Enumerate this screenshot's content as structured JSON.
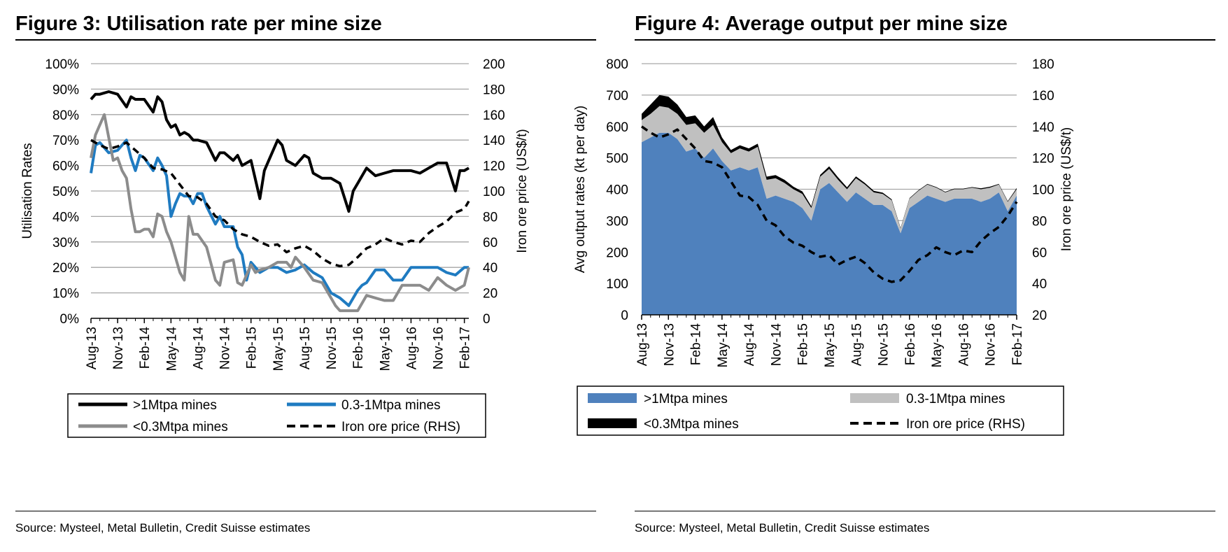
{
  "chart_data": [
    {
      "type": "line",
      "title": "Figure 3: Utilisation rate per mine size",
      "source": "Source: Mysteel, Metal Bulletin, Credit Suisse estimates",
      "ylabel": "Utilisation Rates",
      "y2label": "Iron ore price (US$/t)",
      "ylim": [
        0,
        100
      ],
      "y2lim": [
        0,
        200
      ],
      "yticks": [
        "0%",
        "10%",
        "20%",
        "30%",
        "40%",
        "50%",
        "60%",
        "70%",
        "80%",
        "90%",
        "100%"
      ],
      "y2ticks": [
        "0",
        "20",
        "40",
        "60",
        "80",
        "100",
        "120",
        "140",
        "160",
        "180",
        "200"
      ],
      "xticks": [
        "Aug-13",
        "Nov-13",
        "Feb-14",
        "May-14",
        "Aug-14",
        "Nov-14",
        "Feb-15",
        "May-15",
        "Aug-15",
        "Nov-15",
        "Feb-16",
        "May-16",
        "Aug-16",
        "Nov-16",
        "Feb-17"
      ],
      "x_months": [
        0,
        3,
        6,
        9,
        12,
        15,
        18,
        21,
        24,
        27,
        30,
        33,
        36,
        39,
        42
      ],
      "series": [
        {
          "name": ">1Mtpa mines",
          "axis": "left",
          "color": "#000000",
          "style": "solid",
          "x": [
            0,
            0.5,
            1,
            2,
            3,
            4,
            4.5,
            5,
            5.5,
            6,
            7,
            7.5,
            8,
            8.5,
            9,
            9.5,
            10,
            10.5,
            11,
            11.5,
            12,
            13,
            14,
            14.5,
            15,
            16,
            16.5,
            17,
            18,
            19,
            19.5,
            20,
            21,
            21.5,
            22,
            23,
            24,
            24.5,
            25,
            26,
            27,
            28,
            29,
            29.5,
            30,
            31,
            32,
            33,
            34,
            35,
            36,
            37,
            38,
            39,
            40,
            41,
            41.5,
            42,
            42.5
          ],
          "values": [
            86,
            88,
            88,
            89,
            88,
            83,
            87,
            86,
            86,
            86,
            81,
            87,
            85,
            78,
            75,
            76,
            72,
            73,
            72,
            70,
            70,
            69,
            62,
            65,
            65,
            62,
            64,
            60,
            62,
            47,
            58,
            62,
            70,
            68,
            62,
            60,
            64,
            63,
            57,
            55,
            55,
            53,
            42,
            50,
            53,
            59,
            56,
            57,
            58,
            58,
            58,
            57,
            59,
            61,
            61,
            50,
            58,
            58,
            59
          ]
        },
        {
          "name": "0.3-1Mtpa mines",
          "axis": "left",
          "color": "#1f7bc1",
          "style": "solid",
          "x": [
            0,
            0.5,
            1,
            2,
            3,
            4,
            4.5,
            5,
            5.5,
            6,
            7,
            7.5,
            8,
            8.5,
            9,
            9.5,
            10,
            10.5,
            11,
            11.5,
            12,
            12.5,
            13,
            14,
            14.5,
            15,
            16,
            16.5,
            17,
            17.5,
            18,
            19,
            19.5,
            20,
            21,
            22,
            23,
            24,
            25,
            26,
            27,
            28,
            29,
            30,
            30.5,
            31,
            32,
            33,
            34,
            35,
            36,
            37,
            38,
            39,
            40,
            41,
            42,
            42.5
          ],
          "values": [
            57,
            68,
            69,
            65,
            66,
            70,
            63,
            58,
            64,
            63,
            58,
            63,
            60,
            56,
            40,
            45,
            49,
            48,
            48,
            45,
            49,
            49,
            44,
            37,
            40,
            36,
            36,
            28,
            25,
            15,
            22,
            18,
            19,
            20,
            20,
            18,
            19,
            21,
            18,
            16,
            10,
            8,
            5,
            11,
            13,
            14,
            19,
            19,
            15,
            15,
            20,
            20,
            20,
            20,
            18,
            17,
            20,
            20
          ]
        },
        {
          "name": "<0.3Mtpa mines",
          "axis": "left",
          "color": "#8c8c8c",
          "style": "solid",
          "x": [
            0,
            0.5,
            1,
            1.5,
            2,
            2.5,
            3,
            3.5,
            4,
            4.5,
            5,
            5.5,
            6,
            6.5,
            7,
            7.5,
            8,
            8.5,
            9,
            9.5,
            10,
            10.5,
            11,
            11.5,
            12,
            13,
            14,
            14.5,
            15,
            16,
            16.5,
            17,
            18,
            18.5,
            19,
            20,
            21,
            22,
            22.5,
            23,
            24,
            25,
            26,
            27,
            27.5,
            28,
            28.5,
            29,
            30,
            31,
            32,
            33,
            34,
            35,
            36,
            37,
            38,
            39,
            40,
            41,
            42,
            42.5
          ],
          "values": [
            63,
            72,
            76,
            80,
            71,
            62,
            63,
            58,
            55,
            43,
            34,
            34,
            35,
            35,
            32,
            41,
            40,
            34,
            30,
            24,
            18,
            15,
            40,
            33,
            33,
            28,
            15,
            13,
            22,
            23,
            14,
            13,
            21,
            18,
            19,
            20,
            22,
            22,
            20,
            24,
            20,
            15,
            14,
            8,
            5,
            3,
            3,
            3,
            3,
            9,
            8,
            7,
            7,
            13,
            13,
            13,
            11,
            16,
            13,
            11,
            13,
            20
          ]
        },
        {
          "name": "Iron ore price (RHS)",
          "axis": "right",
          "color": "#000000",
          "style": "dashed",
          "x": [
            0,
            1,
            2,
            3,
            4,
            5,
            6,
            7,
            8,
            9,
            10,
            11,
            12,
            13,
            14,
            15,
            16,
            17,
            18,
            19,
            20,
            21,
            22,
            23,
            24,
            25,
            26,
            27,
            28,
            29,
            30,
            31,
            32,
            33,
            34,
            35,
            36,
            37,
            38,
            39,
            40,
            41,
            42,
            42.5
          ],
          "values": [
            140,
            136,
            133,
            135,
            138,
            132,
            126,
            118,
            117,
            114,
            105,
            96,
            95,
            90,
            80,
            77,
            70,
            66,
            64,
            60,
            57,
            58,
            52,
            55,
            57,
            53,
            47,
            43,
            41,
            42,
            48,
            55,
            58,
            63,
            60,
            58,
            61,
            60,
            67,
            72,
            76,
            83,
            86,
            92
          ]
        }
      ],
      "legend": [
        ">1Mtpa mines",
        "0.3-1Mtpa mines",
        "<0.3Mtpa mines",
        "Iron ore price (RHS)"
      ],
      "legend_position": "bottom"
    },
    {
      "type": "area",
      "stacked": true,
      "title": "Figure 4: Average output per mine size",
      "source": "Source: Mysteel, Metal Bulletin, Credit Suisse estimates",
      "ylabel": "Avg  output rates (kt per day)",
      "y2label": "Iron ore price (US$/t)",
      "ylim": [
        0,
        800
      ],
      "y2lim": [
        20,
        180
      ],
      "yticks": [
        "0",
        "100",
        "200",
        "300",
        "400",
        "500",
        "600",
        "700",
        "800"
      ],
      "y2ticks": [
        "20",
        "40",
        "60",
        "80",
        "100",
        "120",
        "140",
        "160",
        "180"
      ],
      "xticks": [
        "Aug-13",
        "Nov-13",
        "Feb-14",
        "May-14",
        "Aug-14",
        "Nov-14",
        "Feb-15",
        "May-15",
        "Aug-15",
        "Nov-15",
        "Feb-16",
        "May-16",
        "Aug-16",
        "Nov-16",
        "Feb-17"
      ],
      "x_months": [
        0,
        3,
        6,
        9,
        12,
        15,
        18,
        21,
        24,
        27,
        30,
        33,
        36,
        39,
        42
      ],
      "series": [
        {
          "name": ">1Mtpa mines",
          "axis": "left",
          "color": "#4f81bd",
          "style": "area",
          "x": [
            0,
            1,
            2,
            3,
            4,
            5,
            6,
            7,
            8,
            9,
            10,
            11,
            12,
            13,
            14,
            15,
            16,
            17,
            18,
            19,
            20,
            21,
            22,
            23,
            24,
            25,
            26,
            27,
            28,
            29,
            30,
            31,
            32,
            33,
            34,
            35,
            36,
            37,
            38,
            39,
            40,
            41,
            42
          ],
          "values": [
            550,
            565,
            580,
            580,
            560,
            520,
            530,
            500,
            530,
            490,
            460,
            470,
            460,
            470,
            370,
            380,
            370,
            360,
            340,
            300,
            400,
            420,
            390,
            360,
            390,
            370,
            350,
            350,
            330,
            260,
            340,
            360,
            380,
            370,
            360,
            370,
            370,
            370,
            360,
            370,
            390,
            330,
            380
          ]
        },
        {
          "name": "0.3-1Mtpa mines",
          "axis": "left",
          "color": "#c0c0c0",
          "style": "area",
          "x": [
            0,
            1,
            2,
            3,
            4,
            5,
            6,
            7,
            8,
            9,
            10,
            11,
            12,
            13,
            14,
            15,
            16,
            17,
            18,
            19,
            20,
            21,
            22,
            23,
            24,
            25,
            26,
            27,
            28,
            29,
            30,
            31,
            32,
            33,
            34,
            35,
            36,
            37,
            38,
            39,
            40,
            41,
            42
          ],
          "values": [
            70,
            75,
            85,
            80,
            80,
            85,
            80,
            80,
            75,
            60,
            55,
            60,
            60,
            65,
            60,
            55,
            50,
            40,
            45,
            40,
            40,
            45,
            40,
            40,
            45,
            45,
            40,
            35,
            35,
            15,
            30,
            35,
            35,
            35,
            30,
            30,
            30,
            35,
            40,
            35,
            25,
            30,
            20
          ]
        },
        {
          "name": "<0.3Mtpa mines",
          "axis": "left",
          "color": "#000000",
          "style": "area",
          "x": [
            0,
            1,
            2,
            3,
            4,
            5,
            6,
            7,
            8,
            9,
            10,
            11,
            12,
            13,
            14,
            15,
            16,
            17,
            18,
            19,
            20,
            21,
            22,
            23,
            24,
            25,
            26,
            27,
            28,
            29,
            30,
            31,
            32,
            33,
            34,
            35,
            36,
            37,
            38,
            39,
            40,
            41,
            42
          ],
          "values": [
            20,
            30,
            35,
            35,
            30,
            25,
            25,
            20,
            25,
            15,
            10,
            10,
            10,
            10,
            10,
            10,
            10,
            8,
            8,
            6,
            6,
            8,
            8,
            6,
            6,
            5,
            5,
            4,
            3,
            2,
            2,
            2,
            2,
            2,
            2,
            2,
            2,
            2,
            3,
            3,
            2,
            2,
            4
          ]
        },
        {
          "name": "Iron ore price (RHS)",
          "axis": "right",
          "color": "#000000",
          "style": "dashed",
          "x": [
            0,
            1,
            2,
            3,
            4,
            5,
            6,
            7,
            8,
            9,
            10,
            11,
            12,
            13,
            14,
            15,
            16,
            17,
            18,
            19,
            20,
            21,
            22,
            23,
            24,
            25,
            26,
            27,
            28,
            29,
            30,
            31,
            32,
            33,
            34,
            35,
            36,
            37,
            38,
            39,
            40,
            41,
            42
          ],
          "values": [
            140,
            136,
            133,
            135,
            138,
            132,
            126,
            118,
            117,
            114,
            105,
            96,
            95,
            90,
            80,
            77,
            70,
            66,
            64,
            60,
            57,
            58,
            52,
            55,
            57,
            53,
            47,
            43,
            41,
            42,
            48,
            55,
            58,
            63,
            60,
            58,
            61,
            60,
            67,
            72,
            76,
            83,
            92
          ]
        }
      ],
      "legend": [
        ">1Mtpa mines",
        "0.3-1Mtpa mines",
        "<0.3Mtpa mines",
        "Iron ore price (RHS)"
      ],
      "legend_position": "bottom"
    }
  ]
}
